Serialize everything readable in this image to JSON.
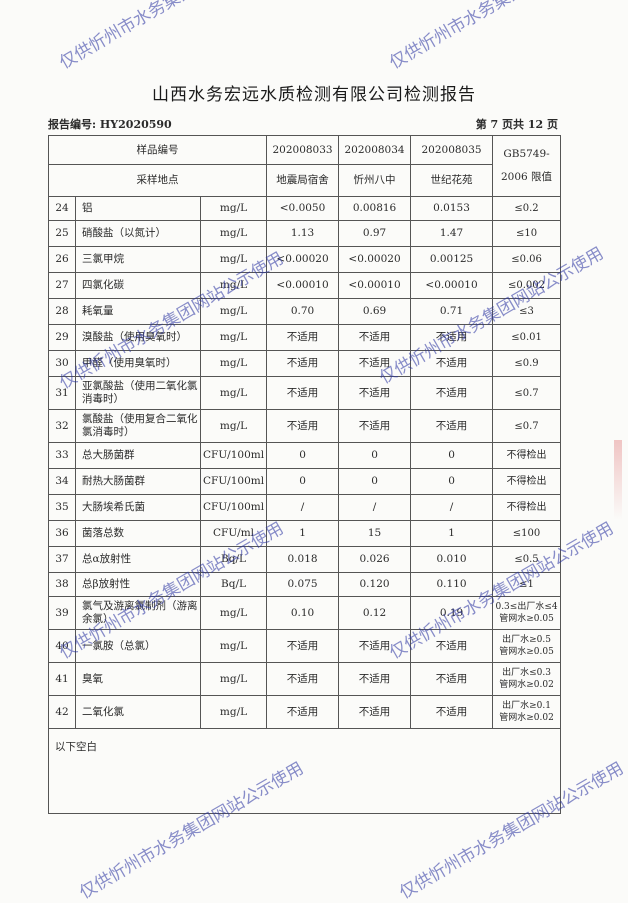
{
  "title": "山西水务宏远水质检测有限公司检测报告",
  "report_no": "报告编号: HY2020590",
  "page_info": "第 7 页共 12 页",
  "header": {
    "sample_no_label": "样品编号",
    "location_label": "采样地点",
    "limit_label_1": "GB5749-",
    "limit_label_2": "2006 限值",
    "samples": [
      {
        "no": "202008033",
        "location": "地震局宿舍"
      },
      {
        "no": "202008034",
        "location": "忻州八中"
      },
      {
        "no": "202008035",
        "location": "世纪花苑"
      }
    ]
  },
  "rows": [
    {
      "idx": "24",
      "name": "铝",
      "unit": "mg/L",
      "v": [
        "<0.0050",
        "0.00816",
        "0.0153"
      ],
      "limit": "≤0.2"
    },
    {
      "idx": "25",
      "name": "硝酸盐（以氮计）",
      "unit": "mg/L",
      "v": [
        "1.13",
        "0.97",
        "1.47"
      ],
      "limit": "≤10"
    },
    {
      "idx": "26",
      "name": "三氯甲烷",
      "unit": "mg/L",
      "v": [
        "<0.00020",
        "<0.00020",
        "0.00125"
      ],
      "limit": "≤0.06"
    },
    {
      "idx": "27",
      "name": "四氯化碳",
      "unit": "mg/L",
      "v": [
        "<0.00010",
        "<0.00010",
        "<0.00010"
      ],
      "limit": "≤0.002"
    },
    {
      "idx": "28",
      "name": "耗氧量",
      "unit": "mg/L",
      "v": [
        "0.70",
        "0.69",
        "0.71"
      ],
      "limit": "≤3"
    },
    {
      "idx": "29",
      "name": "溴酸盐（使用臭氧时）",
      "unit": "mg/L",
      "v": [
        "不适用",
        "不适用",
        "不适用"
      ],
      "limit": "≤0.01"
    },
    {
      "idx": "30",
      "name": "甲醛（使用臭氧时）",
      "unit": "mg/L",
      "v": [
        "不适用",
        "不适用",
        "不适用"
      ],
      "limit": "≤0.9"
    },
    {
      "idx": "31",
      "name": "亚氯酸盐（使用二氧化氯消毒时）",
      "unit": "mg/L",
      "v": [
        "不适用",
        "不适用",
        "不适用"
      ],
      "limit": "≤0.7"
    },
    {
      "idx": "32",
      "name": "氯酸盐（使用复合二氧化氯消毒时）",
      "unit": "mg/L",
      "v": [
        "不适用",
        "不适用",
        "不适用"
      ],
      "limit": "≤0.7"
    },
    {
      "idx": "33",
      "name": "总大肠菌群",
      "unit": "CFU/100ml",
      "v": [
        "0",
        "0",
        "0"
      ],
      "limit": "不得检出"
    },
    {
      "idx": "34",
      "name": "耐热大肠菌群",
      "unit": "CFU/100ml",
      "v": [
        "0",
        "0",
        "0"
      ],
      "limit": "不得检出"
    },
    {
      "idx": "35",
      "name": "大肠埃希氏菌",
      "unit": "CFU/100ml",
      "v": [
        "/",
        "/",
        "/"
      ],
      "limit": "不得检出"
    },
    {
      "idx": "36",
      "name": "菌落总数",
      "unit": "CFU/ml",
      "v": [
        "1",
        "15",
        "1"
      ],
      "limit": "≤100"
    },
    {
      "idx": "37",
      "name": "总α放射性",
      "unit": "Bq/L",
      "v": [
        "0.018",
        "0.026",
        "0.010"
      ],
      "limit": "≤0.5"
    },
    {
      "idx": "38",
      "name": "总β放射性",
      "unit": "Bq/L",
      "v": [
        "0.075",
        "0.120",
        "0.110"
      ],
      "limit": "≤1"
    },
    {
      "idx": "39",
      "name": "氯气及游离氯制剂（游离余氯）",
      "unit": "mg/L",
      "v": [
        "0.10",
        "0.12",
        "0.19"
      ],
      "limit": "0.3≤出厂水≤4",
      "limit2": "管网水≥0.05"
    },
    {
      "idx": "40",
      "name": "一氯胺（总氯）",
      "unit": "mg/L",
      "v": [
        "不适用",
        "不适用",
        "不适用"
      ],
      "limit": "出厂水≥0.5",
      "limit2": "管网水≥0.05"
    },
    {
      "idx": "41",
      "name": "臭氧",
      "unit": "mg/L",
      "v": [
        "不适用",
        "不适用",
        "不适用"
      ],
      "limit": "出厂水≤0.3",
      "limit2": "管网水≥0.02"
    },
    {
      "idx": "42",
      "name": "二氧化氯",
      "unit": "mg/L",
      "v": [
        "不适用",
        "不适用",
        "不适用"
      ],
      "limit": "出厂水≥0.1",
      "limit2": "管网水≥0.02"
    }
  ],
  "footer_note": "以下空白",
  "watermark": "仅供忻州市水务集团网站公示使用"
}
